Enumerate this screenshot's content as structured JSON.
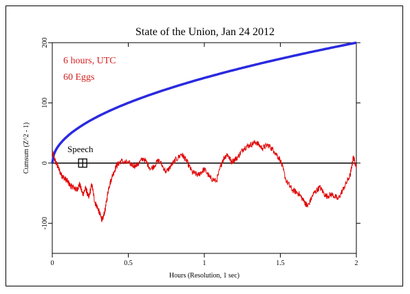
{
  "chart_data": {
    "type": "line",
    "title": "State of the Union, Jan 24 2012",
    "xlabel": "Hours (Resolution, 1 sec)",
    "ylabel": "Cumsum (Z^2 - 1)",
    "xlim": [
      0,
      2
    ],
    "ylim": [
      -150,
      200
    ],
    "x_ticks": [
      0,
      0.5,
      1,
      1.5,
      2
    ],
    "x_tick_labels": [
      "0",
      "0.5",
      "1",
      "1.5",
      "2"
    ],
    "y_ticks": [
      -100,
      0,
      100,
      200
    ],
    "y_tick_labels": [
      "-100",
      "0",
      "100",
      "200"
    ],
    "annotations": [
      "6 hours, UTC",
      "60 Eggs"
    ],
    "event": {
      "label": "Speech",
      "x": 0.2,
      "y": 0
    },
    "baseline": 0,
    "colors": {
      "data": "#e00000",
      "envelope": "#2a2ae0",
      "baseline": "#000000"
    },
    "series": [
      {
        "role": "cumulative-deviation",
        "x": [
          0,
          0.02,
          0.04,
          0.06,
          0.08,
          0.1,
          0.12,
          0.14,
          0.16,
          0.18,
          0.2,
          0.22,
          0.24,
          0.26,
          0.28,
          0.3,
          0.32,
          0.33,
          0.35,
          0.37,
          0.39,
          0.42,
          0.45,
          0.5,
          0.55,
          0.6,
          0.65,
          0.7,
          0.75,
          0.8,
          0.85,
          0.88,
          0.92,
          0.96,
          1.0,
          1.04,
          1.08,
          1.12,
          1.15,
          1.18,
          1.22,
          1.26,
          1.3,
          1.34,
          1.38,
          1.42,
          1.46,
          1.5,
          1.54,
          1.58,
          1.62,
          1.66,
          1.68,
          1.72,
          1.76,
          1.8,
          1.84,
          1.88,
          1.92,
          1.96,
          1.98,
          2.0
        ],
        "y": [
          18,
          3,
          -8,
          -20,
          -25,
          -30,
          -38,
          -40,
          -45,
          -35,
          -52,
          -42,
          -58,
          -35,
          -65,
          -75,
          -90,
          -95,
          -75,
          -42,
          -25,
          -5,
          3,
          0,
          -5,
          8,
          -10,
          5,
          -15,
          2,
          15,
          5,
          -15,
          -20,
          -10,
          -25,
          -30,
          5,
          15,
          2,
          10,
          25,
          30,
          35,
          25,
          30,
          20,
          5,
          -30,
          -45,
          -50,
          -65,
          -72,
          -50,
          -40,
          -55,
          -52,
          -60,
          -40,
          -20,
          10,
          -5
        ]
      },
      {
        "role": "expected-envelope",
        "formula": "y = 200 * sqrt(x / 2)"
      }
    ]
  }
}
